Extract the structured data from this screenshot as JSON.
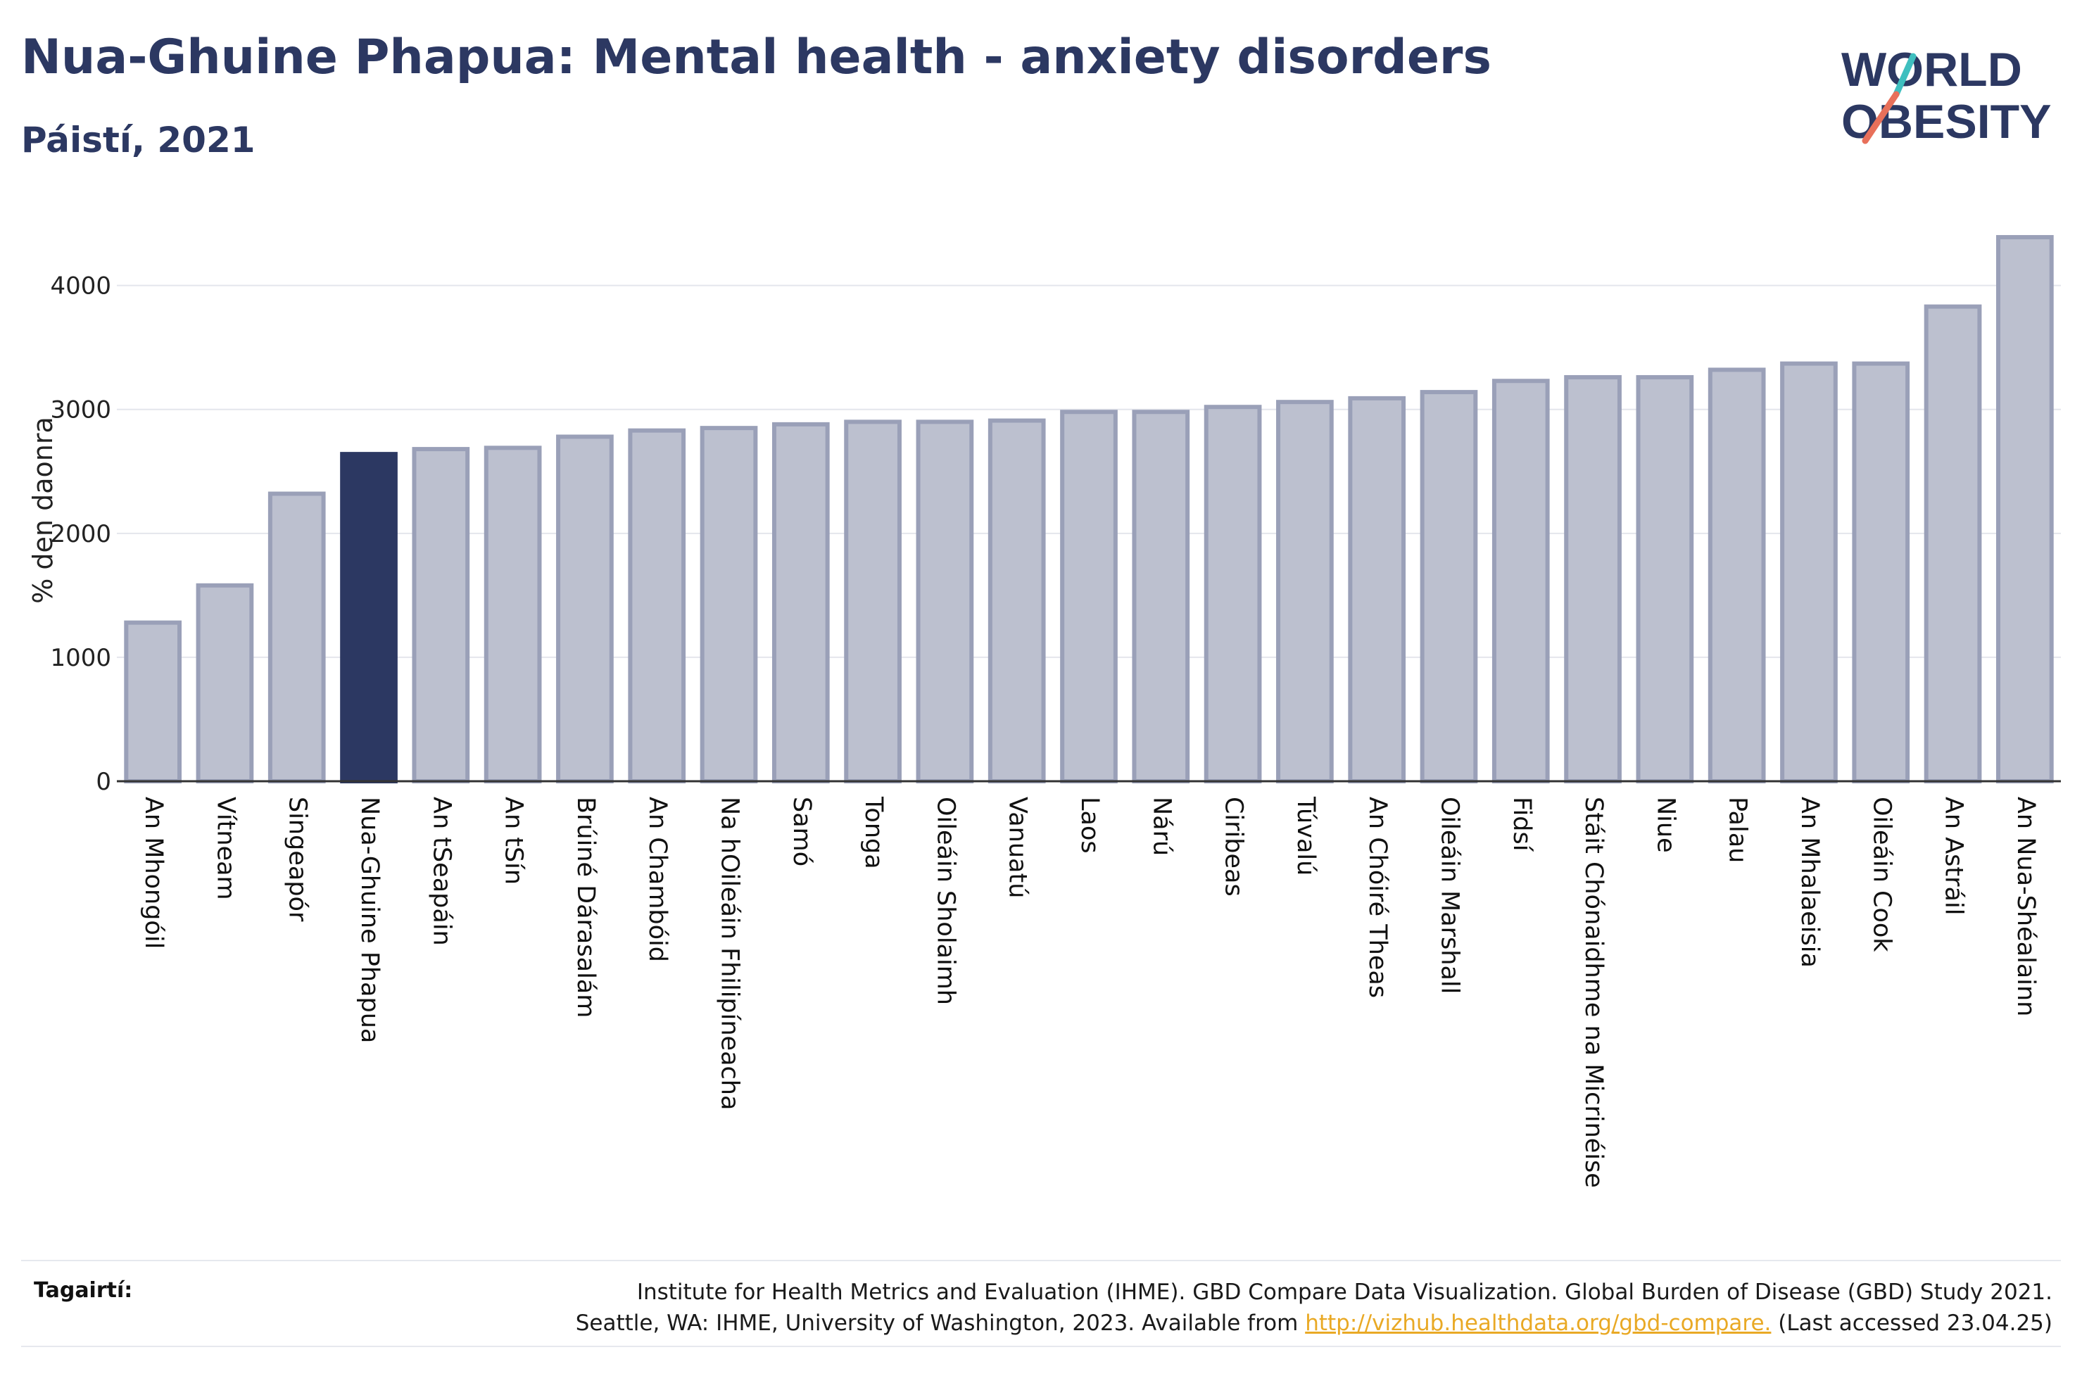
{
  "header": {
    "title": "Nua-Ghuine Phapua: Mental health - anxiety disorders",
    "subtitle": "Páistí, 2021"
  },
  "logo": {
    "line1": "WORLD",
    "line2": "OBESITY",
    "colors": {
      "text": "#2c3862",
      "teal": "#3fbfbf",
      "coral": "#e8705a"
    }
  },
  "chart_data": {
    "type": "bar",
    "title": "",
    "xlabel": "",
    "ylabel": "% den daonra",
    "ylim": [
      0,
      4600
    ],
    "yticks": [
      0,
      1000,
      2000,
      3000,
      4000
    ],
    "grid": true,
    "highlight_category": "Nua-Ghuine Phapua",
    "colors": {
      "bar": "#bcc0cf",
      "bar_edge": "#9aa0b8",
      "highlight": "#2c3862"
    },
    "categories": [
      "An Mhongóil",
      "Vítneam",
      "Singeapór",
      "Nua-Ghuine Phapua",
      "An tSeapáin",
      "An tSín",
      "Brúiné Dárasalám",
      "An Chambóid",
      "Na hOileáin Fhilipíneacha",
      "Samó",
      "Tonga",
      "Oileáin Sholaimh",
      "Vanuatú",
      "Laos",
      "Nárú",
      "Ciribeas",
      "Túvalú",
      "An Chóiré Theas",
      "Oileáin Marshall",
      "Fidsí",
      "Stáit Chónaidhme na Micrinéise",
      "Niue",
      "Palau",
      "An Mhalaeisia",
      "Oileáin Cook",
      "An Astráil",
      "An Nua-Shéalainn"
    ],
    "values": [
      1280,
      1580,
      2320,
      2640,
      2680,
      2690,
      2780,
      2830,
      2850,
      2880,
      2900,
      2900,
      2910,
      2980,
      2980,
      3020,
      3060,
      3090,
      3140,
      3230,
      3260,
      3260,
      3320,
      3370,
      3370,
      3830,
      4390
    ]
  },
  "references": {
    "label": "Tagairtí:",
    "line1": "Institute for Health Metrics and Evaluation (IHME). GBD Compare Data Visualization. Global Burden of Disease (GBD) Study 2021.",
    "line2_prefix": "Seattle, WA: IHME, University of Washington, 2023. Available from",
    "link": "http://vizhub.healthdata.org/gbd-compare.",
    "line2_suffix": "(Last accessed 23.04.25)"
  }
}
